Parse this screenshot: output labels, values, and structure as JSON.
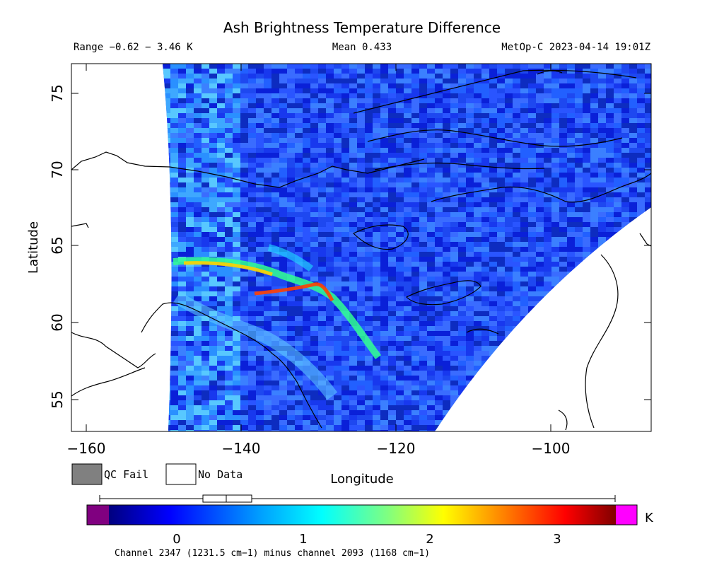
{
  "header": {
    "title": "Ash Brightness Temperature Difference",
    "range_text": "Range −0.62 − 3.46 K",
    "mean_text": "Mean 0.433",
    "satellite_time": "MetOp-C 2023-04-14 19:01Z"
  },
  "axes": {
    "xlabel": "Longitude",
    "ylabel": "Latitude",
    "x_ticks": [
      "−160",
      "−140",
      "−120",
      "−100"
    ],
    "y_ticks": [
      "55",
      "60",
      "65",
      "70",
      "75"
    ]
  },
  "legend": {
    "qc_fail_label": "QC Fail",
    "no_data_label": "No Data",
    "qc_fail_color": "#808080",
    "no_data_color": "#ffffff"
  },
  "colorbar": {
    "unit": "K",
    "ticks": [
      "0",
      "1",
      "2",
      "3"
    ],
    "under_color": "#800080",
    "over_color": "#ff00ff",
    "caption": "Channel 2347 (1231.5 cm−1) minus channel 2093 (1168 cm−1)"
  },
  "map_data": {
    "lon_range": [
      -162,
      -87
    ],
    "lat_range": [
      53,
      77
    ],
    "value_range": [
      -0.62,
      3.46
    ],
    "mean": 0.433,
    "colormap": [
      "#00007f",
      "#0000ff",
      "#00a0ff",
      "#00ffff",
      "#80ff80",
      "#ffff00",
      "#ff8000",
      "#ff0000",
      "#800000"
    ]
  }
}
